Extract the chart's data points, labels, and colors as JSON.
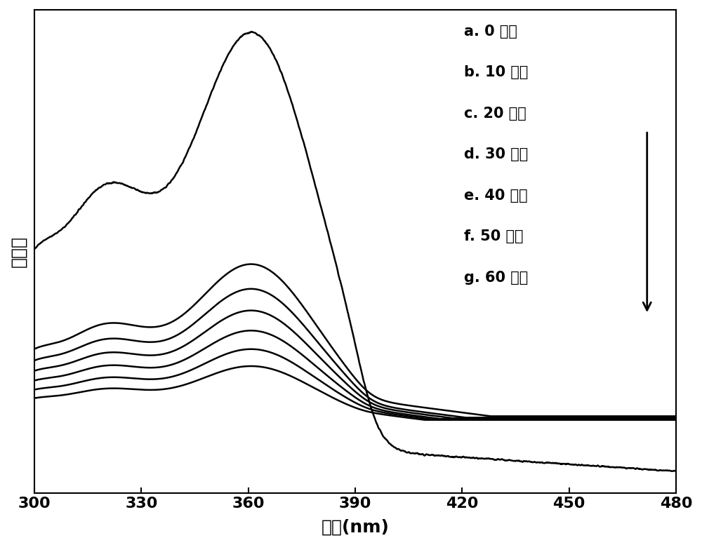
{
  "xmin": 300,
  "xmax": 480,
  "xlabel": "波长(nm)",
  "ylabel": "吸光度",
  "xticks": [
    300,
    330,
    360,
    390,
    420,
    450,
    480
  ],
  "legend_labels": [
    "a. 0 分钟",
    "b. 10 分钟",
    "c. 20 分钟",
    "d. 30 分钟",
    "e. 40 分钟",
    "f. 50 分钟",
    "g. 60 分钟"
  ],
  "background_color": "#ffffff",
  "line_color": "#000000",
  "figsize": [
    10.0,
    7.77
  ],
  "dpi": 100
}
